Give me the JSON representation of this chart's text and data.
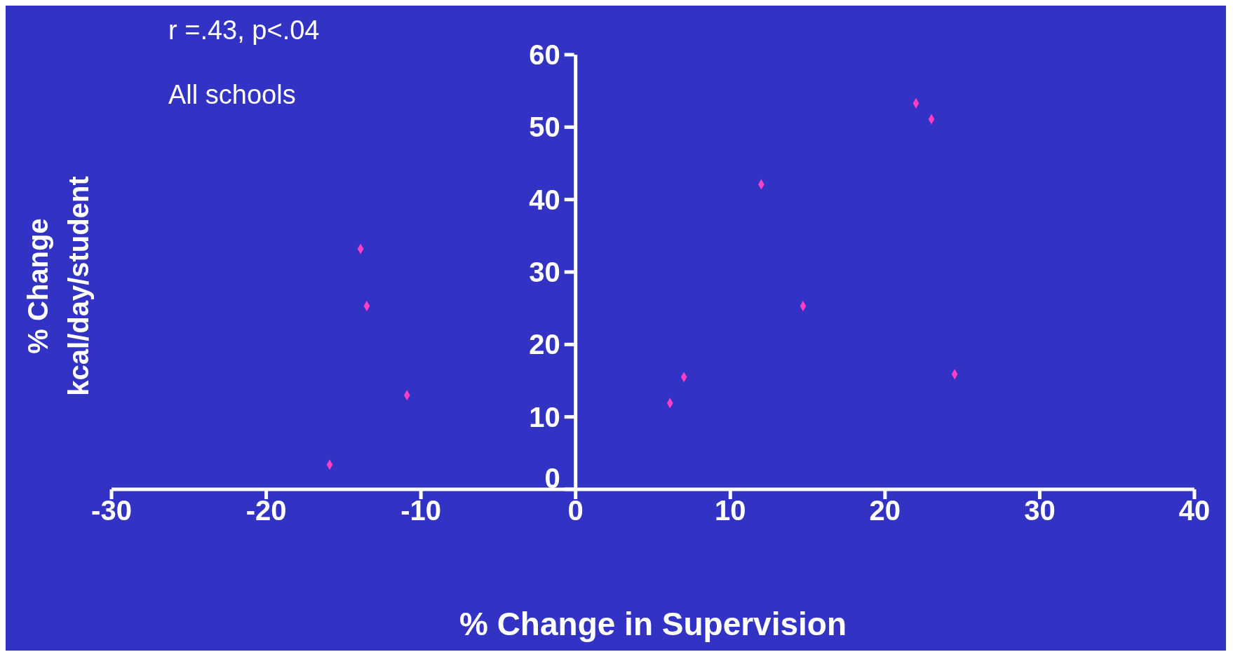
{
  "chart_data": {
    "type": "scatter",
    "xlabel": "% Change in Supervision",
    "ylabel": "% Change\nkcal/day/student",
    "annotations": [
      "r =.43, p<.04",
      "All schools"
    ],
    "x": [
      -15.9,
      -10.9,
      -13.5,
      -13.9,
      6.1,
      7.0,
      12.0,
      14.7,
      22.0,
      23.0,
      24.5
    ],
    "series": [
      {
        "color": "#ff3ec4",
        "values": [
          3.4,
          13.0,
          25.3,
          33.2,
          11.9,
          15.5,
          42.1,
          25.3,
          53.3,
          51.1,
          15.9
        ]
      }
    ],
    "xlim": [
      -30,
      40
    ],
    "xticks": [
      -30,
      -20,
      -10,
      0,
      10,
      20,
      30,
      40
    ],
    "ylim": [
      0,
      60
    ],
    "yticks": [
      0,
      10,
      20,
      30,
      40,
      50,
      60
    ],
    "marker": "diamond",
    "grid": false
  }
}
